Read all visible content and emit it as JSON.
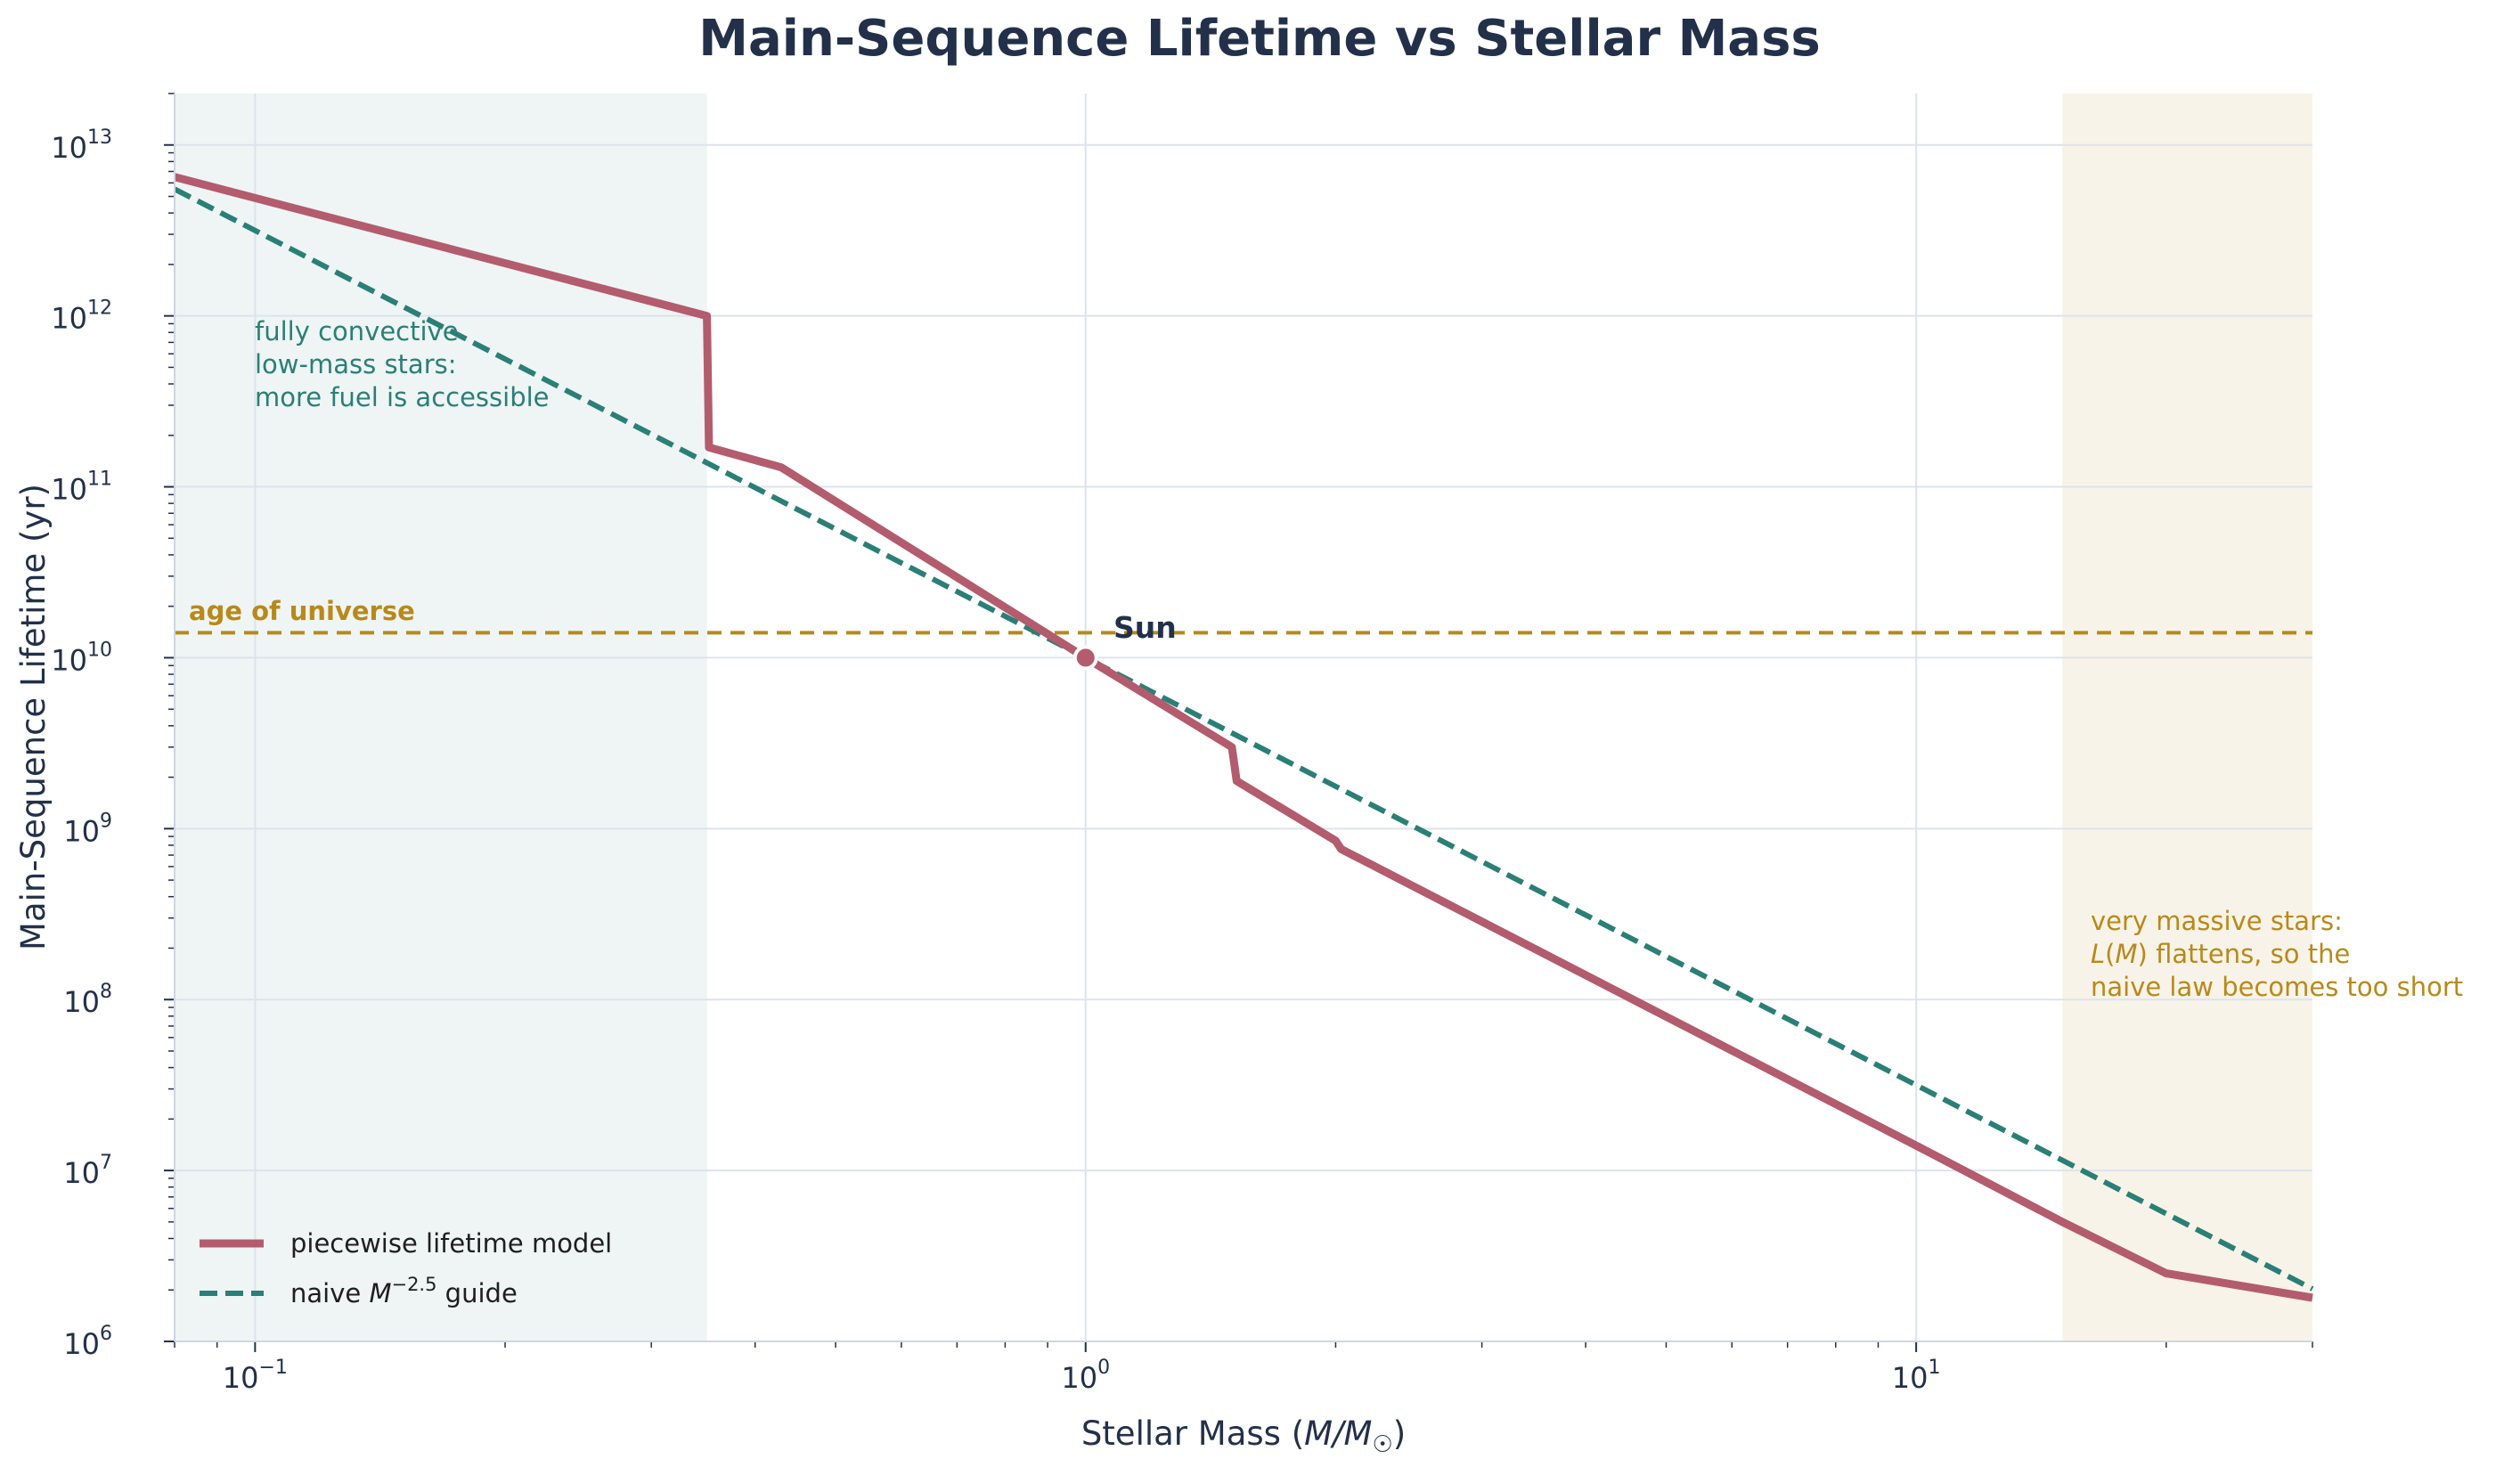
{
  "chart_data": {
    "type": "line",
    "title": "Main-Sequence Lifetime vs Stellar Mass",
    "xlabel": {
      "prefix": "Stellar Mass (",
      "var": "M/M",
      "sub": "☉",
      "suffix": ")"
    },
    "ylabel": "Main-Sequence Lifetime (yr)",
    "xscale": "log",
    "yscale": "log",
    "xlim": [
      0.08,
      30
    ],
    "ylim": [
      1000000.0,
      20000000000000.0
    ],
    "grid": true,
    "x_ticks": [
      {
        "base": "10",
        "exp": "−1",
        "value": 0.1
      },
      {
        "base": "10",
        "exp": "0",
        "value": 1
      },
      {
        "base": "10",
        "exp": "1",
        "value": 10
      }
    ],
    "y_ticks": [
      {
        "base": "10",
        "exp": "6",
        "value": 1000000.0
      },
      {
        "base": "10",
        "exp": "7",
        "value": 10000000.0
      },
      {
        "base": "10",
        "exp": "8",
        "value": 100000000.0
      },
      {
        "base": "10",
        "exp": "9",
        "value": 1000000000.0
      },
      {
        "base": "10",
        "exp": "10",
        "value": 10000000000.0
      },
      {
        "base": "10",
        "exp": "11",
        "value": 100000000000.0
      },
      {
        "base": "10",
        "exp": "12",
        "value": 1000000000000.0
      },
      {
        "base": "10",
        "exp": "13",
        "value": 10000000000000.0
      }
    ],
    "series": [
      {
        "name": "piecewise lifetime model",
        "color": "#b35c6e",
        "style": "solid",
        "x": [
          0.08,
          0.35,
          0.352,
          0.43,
          1.0,
          1.5,
          1.52,
          2.0,
          2.03,
          10,
          15,
          20,
          30
        ],
        "y": [
          6500000000000.0,
          1000000000000.0,
          170000000000.0,
          130000000000.0,
          10000000000.0,
          3000000000.0,
          1900000000.0,
          850000000.0,
          760000000.0,
          14000000.0,
          5000000.0,
          2500000.0,
          1800000.0
        ]
      },
      {
        "name": "naive M^−2.5 guide",
        "color": "#2a7f76",
        "style": "dashed",
        "x": [
          0.08,
          0.1,
          0.3,
          1,
          3,
          10,
          20,
          30
        ],
        "y": [
          5520000000000.0,
          3160000000000.0,
          203000000000.0,
          10000000000.0,
          642000000.0,
          31600000.0,
          5590000.0,
          2030000.0
        ]
      }
    ],
    "legend": {
      "placement": "lower-left",
      "items": [
        {
          "parts": [
            "piecewise lifetime model"
          ]
        },
        {
          "parts": [
            "naive ",
            "M",
            "−2.5",
            " guide"
          ]
        }
      ]
    },
    "hline": {
      "y": 14000000000.0,
      "label": "age of universe",
      "color": "#b8891a"
    },
    "shaded_regions": [
      {
        "x": [
          0.08,
          0.35
        ],
        "color": "#2a7f76"
      },
      {
        "x": [
          15,
          30
        ],
        "color": "#b8891a"
      }
    ],
    "marker": {
      "x": 1,
      "y": 10000000000.0,
      "label": "Sun"
    },
    "annotations": {
      "low_mass": [
        "fully convective",
        "low-mass stars:",
        "more fuel is accessible"
      ],
      "high_mass": {
        "line1": "very massive stars:",
        "line2_L": "L",
        "line2_M": "M",
        "line2_rest": " flattens, so the",
        "line3": "naive law becomes too short"
      }
    }
  }
}
